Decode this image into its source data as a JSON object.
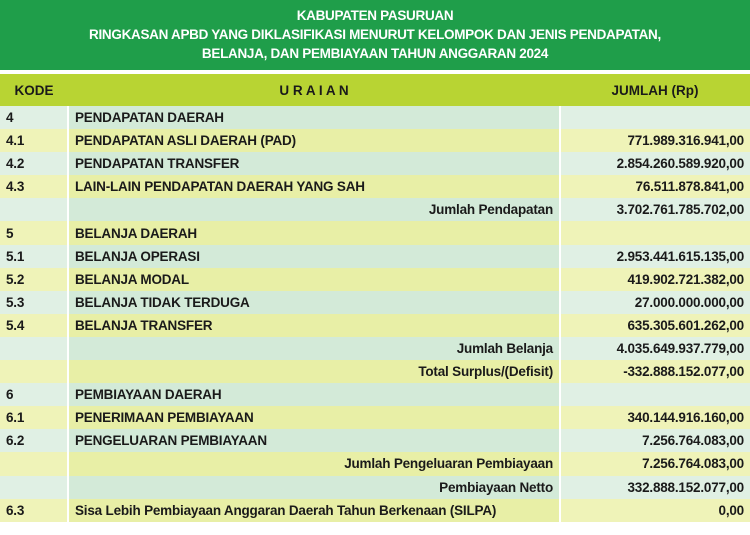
{
  "header": {
    "title_lines": [
      "KABUPATEN PASURUAN",
      "RINGKASAN APBD YANG DIKLASIFIKASI MENURUT KELOMPOK DAN JENIS PENDAPATAN,",
      "BELANJA, DAN PEMBIAYAAN TAHUN ANGGARAN 2024"
    ]
  },
  "table": {
    "columns": [
      "KODE",
      "U R A I A N",
      "JUMLAH (Rp)"
    ],
    "rows": [
      [
        "4",
        "PENDAPATAN DAERAH",
        null
      ],
      [
        "4.1",
        "PENDAPATAN ASLI DAERAH (PAD)",
        "771.989.316.941,00"
      ],
      [
        "4.2",
        "PENDAPATAN TRANSFER",
        "2.854.260.589.920,00"
      ],
      [
        "4.3",
        "LAIN-LAIN PENDAPATAN DAERAH YANG SAH",
        "76.511.878.841,00"
      ],
      [
        null,
        "Jumlah Pendapatan",
        "3.702.761.785.702,00"
      ],
      [
        "5",
        "BELANJA DAERAH",
        null
      ],
      [
        "5.1",
        "BELANJA OPERASI",
        "2.953.441.615.135,00"
      ],
      [
        "5.2",
        "BELANJA MODAL",
        "419.902.721.382,00"
      ],
      [
        "5.3",
        "BELANJA TIDAK TERDUGA",
        "27.000.000.000,00"
      ],
      [
        "5.4",
        "BELANJA TRANSFER",
        "635.305.601.262,00"
      ],
      [
        null,
        "Jumlah Belanja",
        "4.035.649.937.779,00"
      ],
      [
        null,
        "Total Surplus/(Defisit)",
        "-332.888.152.077,00"
      ],
      [
        "6",
        "PEMBIAYAAN DAERAH",
        null
      ],
      [
        "6.1",
        "PENERIMAAN PEMBIAYAAN",
        "340.144.916.160,00"
      ],
      [
        "6.2",
        "PENGELUARAN PEMBIAYAAN",
        "7.256.764.083,00"
      ],
      [
        null,
        "Jumlah Pengeluaran Pembiayaan",
        "7.256.764.083,00"
      ],
      [
        null,
        "Pembiayaan Netto",
        "332.888.152.077,00"
      ],
      [
        "6.3",
        "Sisa Lebih Pembiayaan Anggaran Daerah Tahun Berkenaan (SILPA)",
        "0,00"
      ]
    ]
  }
}
